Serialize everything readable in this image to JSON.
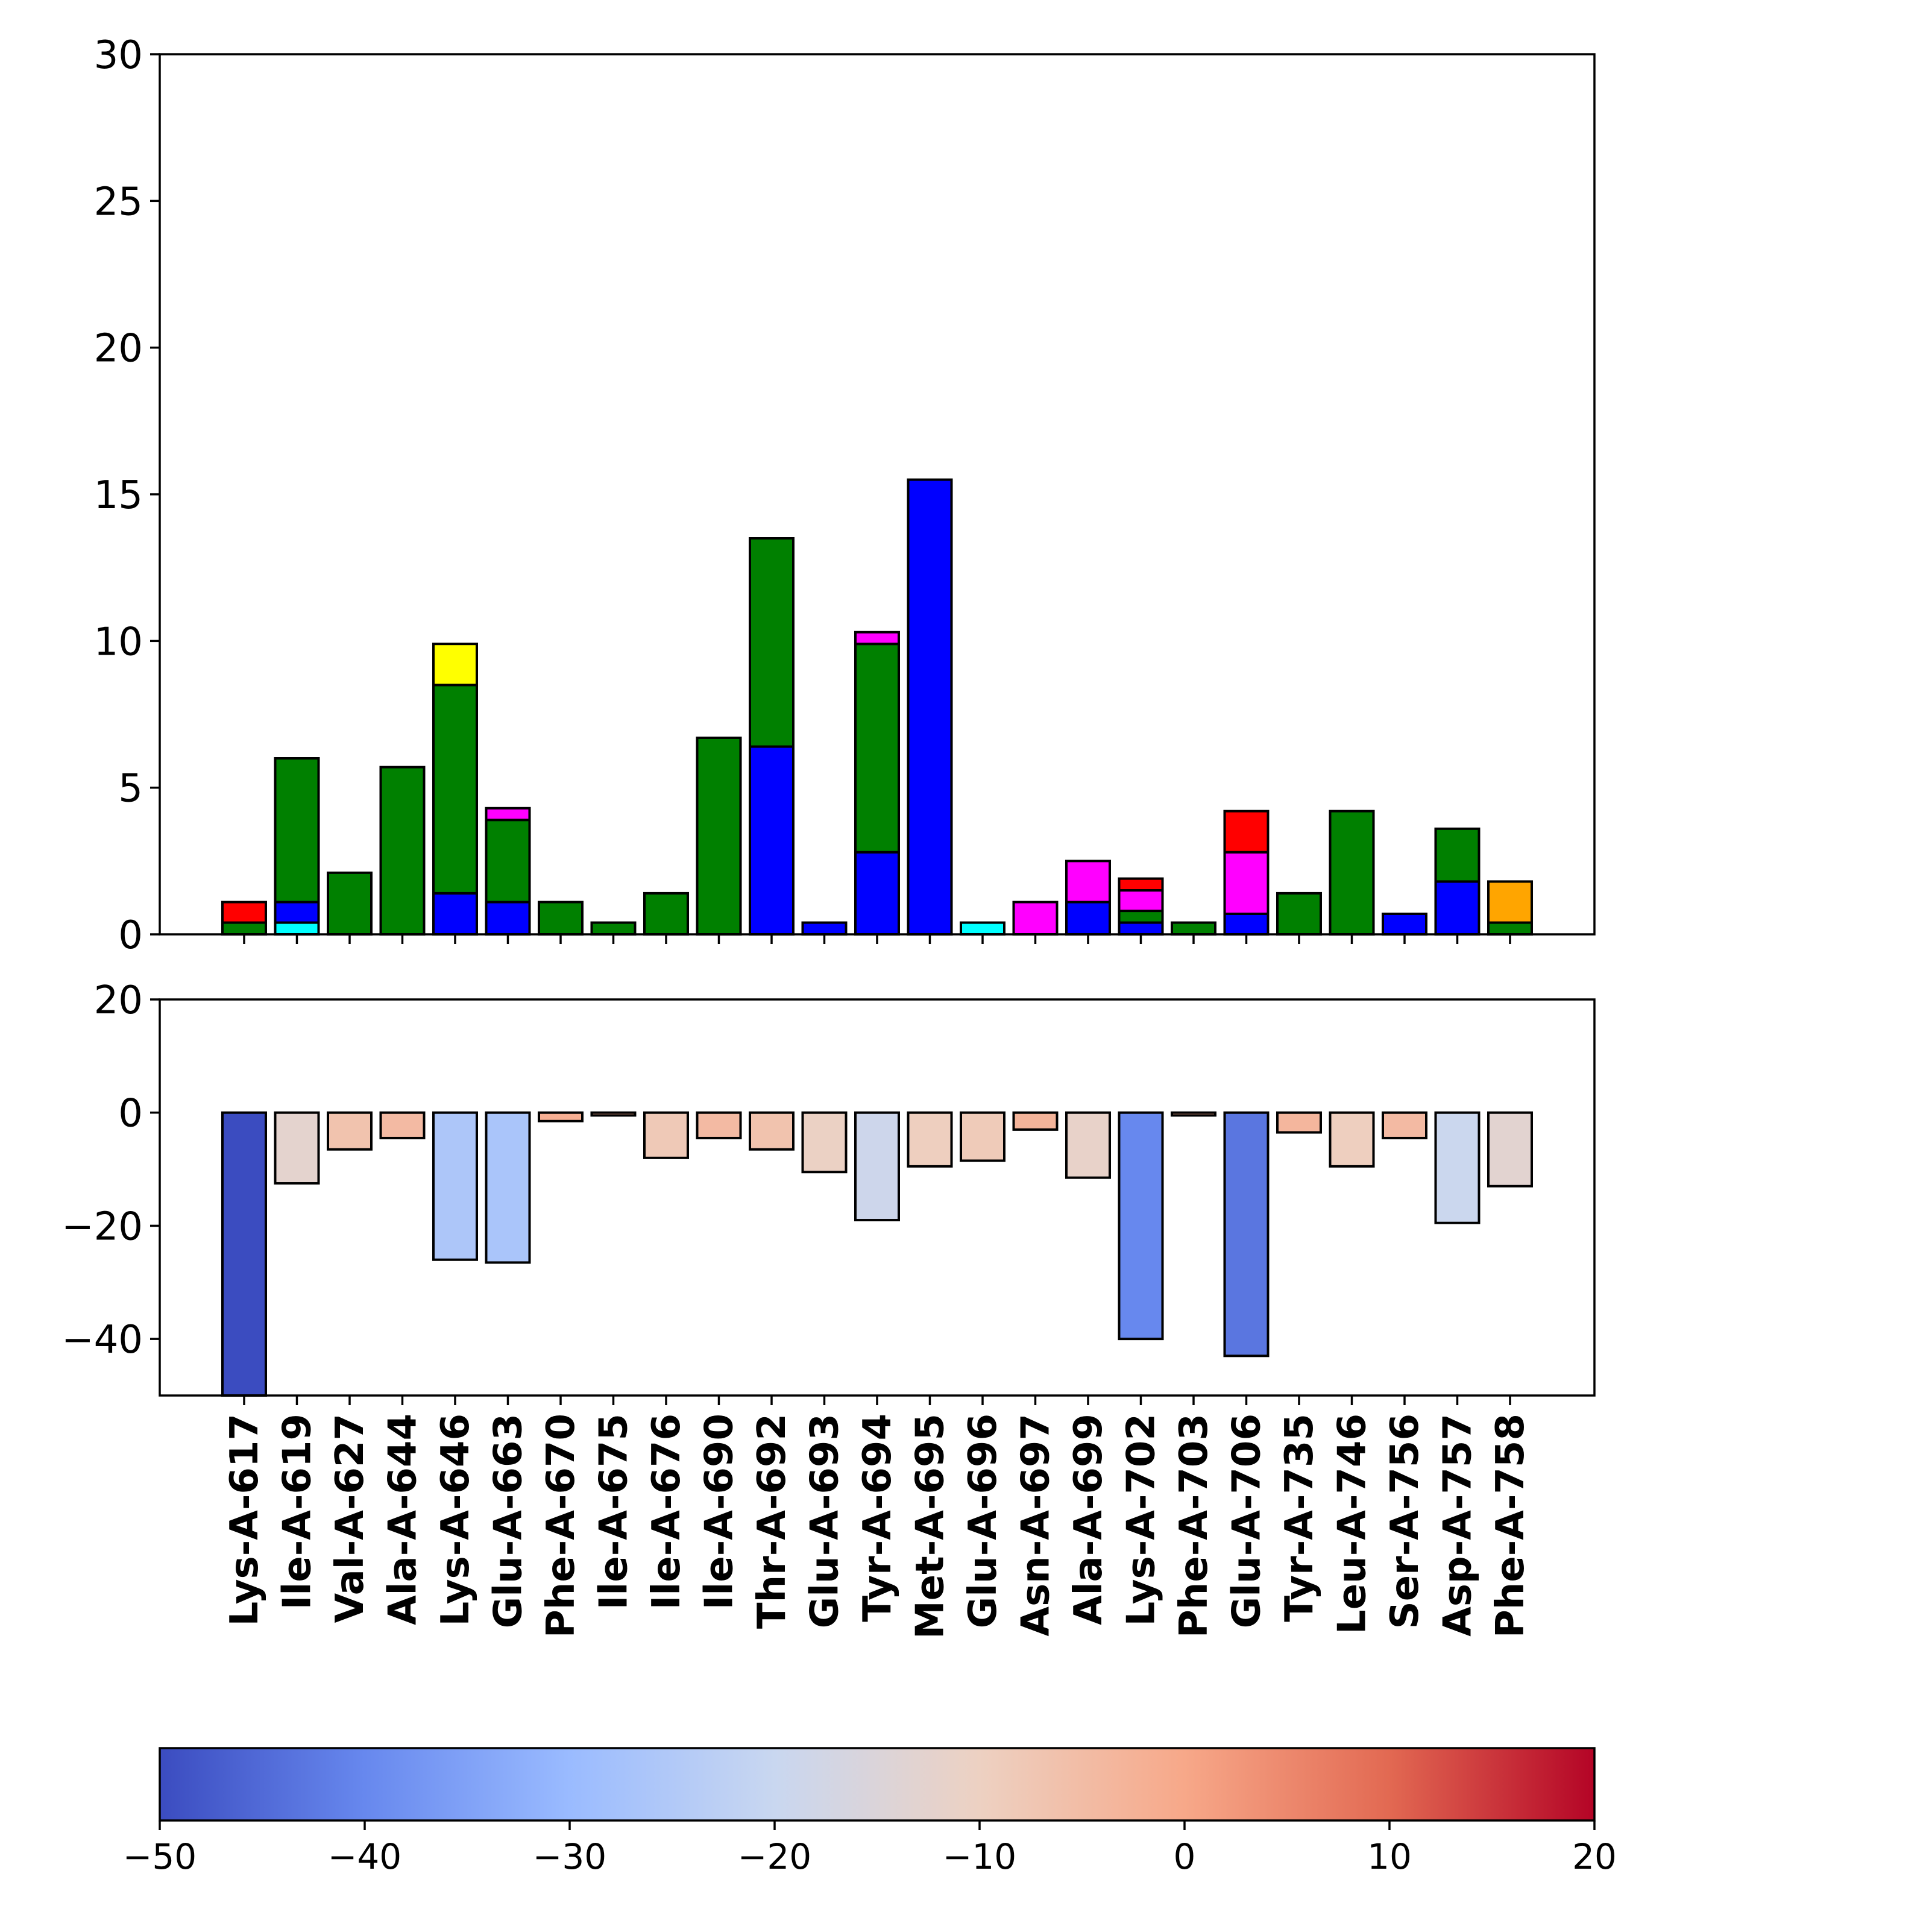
{
  "chart_data": [
    {
      "type": "bar",
      "stacked": true,
      "panel": "top",
      "categories": [
        "Lys-A-617",
        "Ile-A-619",
        "Val-A-627",
        "Ala-A-644",
        "Lys-A-646",
        "Glu-A-663",
        "Phe-A-670",
        "Ile-A-675",
        "Ile-A-676",
        "Ile-A-690",
        "Thr-A-692",
        "Glu-A-693",
        "Tyr-A-694",
        "Met-A-695",
        "Glu-A-696",
        "Asn-A-697",
        "Ala-A-699",
        "Lys-A-702",
        "Phe-A-703",
        "Glu-A-706",
        "Tyr-A-735",
        "Leu-A-746",
        "Ser-A-756",
        "Asp-A-757",
        "Phe-A-758"
      ],
      "stack_order": [
        "cyan",
        "blue",
        "green",
        "magenta",
        "red",
        "yellow",
        "orange"
      ],
      "colors": {
        "cyan": "#00ffff",
        "blue": "#0000ff",
        "green": "#008000",
        "magenta": "#ff00ff",
        "red": "#ff0000",
        "yellow": "#ffff00",
        "orange": "#ffa500"
      },
      "series": [
        {
          "color_key": "cyan",
          "values": [
            0,
            0.4,
            0,
            0,
            0,
            0,
            0,
            0,
            0,
            0,
            0,
            0,
            0,
            0,
            0.4,
            0,
            0,
            0,
            0,
            0,
            0,
            0,
            0,
            0,
            0
          ]
        },
        {
          "color_key": "blue",
          "values": [
            0,
            0.7,
            0,
            0,
            1.4,
            1.1,
            0,
            0,
            0,
            0,
            6.4,
            0.4,
            2.8,
            15.5,
            0,
            0,
            1.1,
            0.4,
            0,
            0.7,
            0,
            0,
            0.7,
            1.8,
            0
          ]
        },
        {
          "color_key": "green",
          "values": [
            0.4,
            4.9,
            2.1,
            5.7,
            7.1,
            2.8,
            1.1,
            0.4,
            1.4,
            6.7,
            7.1,
            0,
            7.1,
            0,
            0,
            0,
            0,
            0.4,
            0.4,
            0,
            1.4,
            4.2,
            0,
            1.8,
            0.4
          ]
        },
        {
          "color_key": "magenta",
          "values": [
            0,
            0,
            0,
            0,
            0,
            0.4,
            0,
            0,
            0,
            0,
            0,
            0,
            0.4,
            0,
            0,
            1.1,
            1.4,
            0.7,
            0,
            2.1,
            0,
            0,
            0,
            0,
            0
          ]
        },
        {
          "color_key": "red",
          "values": [
            0.7,
            0,
            0,
            0,
            0,
            0,
            0,
            0,
            0,
            0,
            0,
            0,
            0,
            0,
            0,
            0,
            0,
            0.4,
            0,
            1.4,
            0,
            0,
            0,
            0,
            0
          ]
        },
        {
          "color_key": "yellow",
          "values": [
            0,
            0,
            0,
            0,
            1.4,
            0,
            0,
            0,
            0,
            0,
            0,
            0,
            0,
            0,
            0,
            0,
            0,
            0,
            0,
            0,
            0,
            0,
            0,
            0,
            0
          ]
        },
        {
          "color_key": "orange",
          "values": [
            0,
            0,
            0,
            0,
            0,
            0,
            0,
            0,
            0,
            0,
            0,
            0,
            0,
            0,
            0,
            0,
            0,
            0,
            0,
            0,
            0,
            0,
            0,
            0,
            1.4
          ]
        }
      ],
      "ylim": [
        0,
        30
      ],
      "yticks": [
        "0",
        "5",
        "10",
        "15",
        "20",
        "25",
        "30"
      ],
      "grid": false
    },
    {
      "type": "bar",
      "panel": "bottom",
      "categories": [
        "Lys-A-617",
        "Ile-A-619",
        "Val-A-627",
        "Ala-A-644",
        "Lys-A-646",
        "Glu-A-663",
        "Phe-A-670",
        "Ile-A-675",
        "Ile-A-676",
        "Ile-A-690",
        "Thr-A-692",
        "Glu-A-693",
        "Tyr-A-694",
        "Met-A-695",
        "Glu-A-696",
        "Asn-A-697",
        "Ala-A-699",
        "Lys-A-702",
        "Phe-A-703",
        "Glu-A-706",
        "Tyr-A-735",
        "Leu-A-746",
        "Ser-A-756",
        "Asp-A-757",
        "Phe-A-758"
      ],
      "values": [
        -50,
        -12.5,
        -6.5,
        -4.5,
        -26,
        -26.5,
        -1.5,
        -0.5,
        -8,
        -4.5,
        -6.5,
        -10.5,
        -19,
        -9.5,
        -8.5,
        -3,
        -11.5,
        -40,
        -0.5,
        -43,
        -3.5,
        -9.5,
        -4.5,
        -19.5,
        -13
      ],
      "ylim": [
        -50,
        20
      ],
      "yticks": [
        "−40",
        "−20",
        "0",
        "20"
      ],
      "colormap": "coolwarm",
      "color_range": [
        -50,
        20
      ],
      "grid": false
    }
  ],
  "colorbar": {
    "range": [
      -50,
      20
    ],
    "ticks": [
      "−50",
      "−40",
      "−30",
      "−20",
      "−10",
      "0",
      "10",
      "20"
    ],
    "stops": [
      "#3b4cc0",
      "#6788ee",
      "#9abbff",
      "#c9d7f0",
      "#edd1c2",
      "#f7a889",
      "#e26952",
      "#b40426"
    ]
  }
}
